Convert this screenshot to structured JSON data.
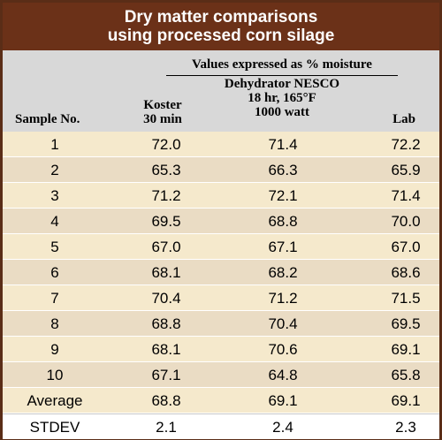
{
  "title": {
    "line1": "Dry matter comparisons",
    "line2": "using processed corn silage"
  },
  "header": {
    "group_label": "Values expressed as % moisture",
    "sample_col": "Sample No.",
    "koster_line1": "Koster",
    "koster_line2": "30 min",
    "dehyd_line1": "Dehydrator NESCO",
    "dehyd_line2": "18 hr, 165°F",
    "dehyd_line3": "1000 watt",
    "lab_col": "Lab"
  },
  "rows": [
    {
      "sample": "1",
      "koster": "72.0",
      "dehydrator": "71.4",
      "lab": "72.2"
    },
    {
      "sample": "2",
      "koster": "65.3",
      "dehydrator": "66.3",
      "lab": "65.9"
    },
    {
      "sample": "3",
      "koster": "71.2",
      "dehydrator": "72.1",
      "lab": "71.4"
    },
    {
      "sample": "4",
      "koster": "69.5",
      "dehydrator": "68.8",
      "lab": "70.0"
    },
    {
      "sample": "5",
      "koster": "67.0",
      "dehydrator": "67.1",
      "lab": "67.0"
    },
    {
      "sample": "6",
      "koster": "68.1",
      "dehydrator": "68.2",
      "lab": "68.6"
    },
    {
      "sample": "7",
      "koster": "70.4",
      "dehydrator": "71.2",
      "lab": "71.5"
    },
    {
      "sample": "8",
      "koster": "68.8",
      "dehydrator": "70.4",
      "lab": "69.5"
    },
    {
      "sample": "9",
      "koster": "68.1",
      "dehydrator": "70.6",
      "lab": "69.1"
    },
    {
      "sample": "10",
      "koster": "67.1",
      "dehydrator": "64.8",
      "lab": "65.8"
    },
    {
      "sample": "Average",
      "koster": "68.8",
      "dehydrator": "69.1",
      "lab": "69.1"
    },
    {
      "sample": "STDEV",
      "koster": "2.1",
      "dehydrator": "2.4",
      "lab": "2.3"
    }
  ],
  "colors": {
    "title_bar": "#6b3118",
    "header_bg": "#d8d8d8",
    "row_light": "#f5e9cc",
    "row_dark": "#eadcc4"
  }
}
